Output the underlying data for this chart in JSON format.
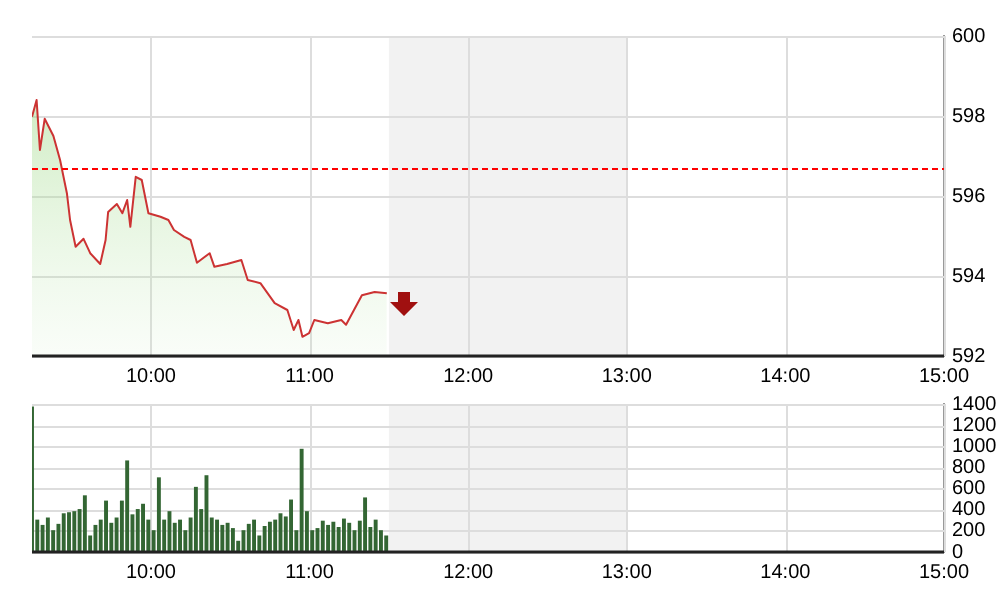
{
  "chart_data": [
    {
      "type": "area",
      "color": "#cc3333",
      "x": [
        9.25,
        9.279,
        9.3,
        9.33,
        9.385,
        9.427,
        9.47,
        9.49,
        9.525,
        9.575,
        9.617,
        9.68,
        9.714,
        9.73,
        9.785,
        9.82,
        9.85,
        9.87,
        9.904,
        9.942,
        9.984,
        10.06,
        10.11,
        10.145,
        10.21,
        10.25,
        10.29,
        10.37,
        10.4,
        10.48,
        10.57,
        10.61,
        10.69,
        10.78,
        10.86,
        10.9,
        10.93,
        10.955,
        10.997,
        11.03,
        11.115,
        11.2,
        11.23,
        11.33,
        11.41,
        11.487
      ],
      "values": [
        597.98,
        598.4,
        597.15,
        597.93,
        597.5,
        596.9,
        596.07,
        595.4,
        594.73,
        594.93,
        594.57,
        594.3,
        594.9,
        595.6,
        595.8,
        595.57,
        595.9,
        595.23,
        596.48,
        596.4,
        595.57,
        595.48,
        595.4,
        595.15,
        594.98,
        594.9,
        594.33,
        594.57,
        594.23,
        594.3,
        594.4,
        593.9,
        593.82,
        593.32,
        593.15,
        592.65,
        592.9,
        592.48,
        592.57,
        592.9,
        592.82,
        592.9,
        592.78,
        593.52,
        593.6,
        593.57
      ],
      "xlim": [
        9.25,
        15
      ],
      "xticks": [
        {
          "value": 10,
          "label": "10:00"
        },
        {
          "value": 11,
          "label": "11:00"
        },
        {
          "value": 12,
          "label": "12:00"
        },
        {
          "value": 13,
          "label": "13:00"
        },
        {
          "value": 14,
          "label": "14:00"
        },
        {
          "value": 15,
          "label": "15:00"
        }
      ],
      "ylim": [
        592,
        600
      ],
      "yticks": [
        592,
        594,
        596,
        598,
        600
      ],
      "grid": true,
      "bands": [
        {
          "axis": "x",
          "from": 11.5,
          "to": 13,
          "color": "#f2f2f2"
        }
      ],
      "ref_lines": [
        {
          "axis": "y",
          "value": 596.7,
          "color": "#ff0000",
          "line_style": "dashed"
        }
      ]
    },
    {
      "type": "bar",
      "color": "#336633",
      "x": [
        9.25,
        9.2833,
        9.3167,
        9.35,
        9.3833,
        9.4167,
        9.45,
        9.4833,
        9.5167,
        9.55,
        9.5833,
        9.6167,
        9.65,
        9.6833,
        9.7167,
        9.75,
        9.7833,
        9.8167,
        9.85,
        9.8833,
        9.9167,
        9.95,
        9.9833,
        10.0167,
        10.05,
        10.0833,
        10.1167,
        10.15,
        10.1833,
        10.2167,
        10.25,
        10.2833,
        10.3167,
        10.35,
        10.3833,
        10.4167,
        10.45,
        10.4833,
        10.5167,
        10.55,
        10.5833,
        10.6167,
        10.65,
        10.6833,
        10.7167,
        10.75,
        10.7833,
        10.8167,
        10.85,
        10.8833,
        10.9167,
        10.95,
        10.9833,
        11.0167,
        11.05,
        11.0833,
        11.1167,
        11.15,
        11.1833,
        11.2167,
        11.25,
        11.2833,
        11.3167,
        11.35,
        11.3833,
        11.4167,
        11.45,
        11.4833
      ],
      "values": [
        1370,
        300,
        250,
        320,
        200,
        260,
        360,
        370,
        380,
        400,
        530,
        150,
        250,
        300,
        480,
        270,
        320,
        480,
        860,
        350,
        400,
        450,
        300,
        200,
        700,
        300,
        380,
        270,
        300,
        200,
        320,
        610,
        400,
        720,
        320,
        300,
        250,
        270,
        220,
        100,
        200,
        260,
        300,
        150,
        240,
        280,
        300,
        360,
        330,
        490,
        200,
        970,
        380,
        200,
        220,
        290,
        250,
        280,
        230,
        310,
        270,
        200,
        290,
        510,
        230,
        300,
        200,
        150
      ],
      "xlim": [
        9.25,
        15
      ],
      "xticks": [
        {
          "value": 10,
          "label": "10:00"
        },
        {
          "value": 11,
          "label": "11:00"
        },
        {
          "value": 12,
          "label": "12:00"
        },
        {
          "value": 13,
          "label": "13:00"
        },
        {
          "value": 14,
          "label": "14:00"
        },
        {
          "value": 15,
          "label": "15:00"
        }
      ],
      "ylim": [
        0,
        1400
      ],
      "yticks": [
        0,
        200,
        400,
        600,
        800,
        1000,
        1200,
        1400
      ],
      "grid": true,
      "bands": [
        {
          "axis": "x",
          "from": 11.5,
          "to": 13,
          "color": "#f2f2f2"
        }
      ]
    }
  ]
}
